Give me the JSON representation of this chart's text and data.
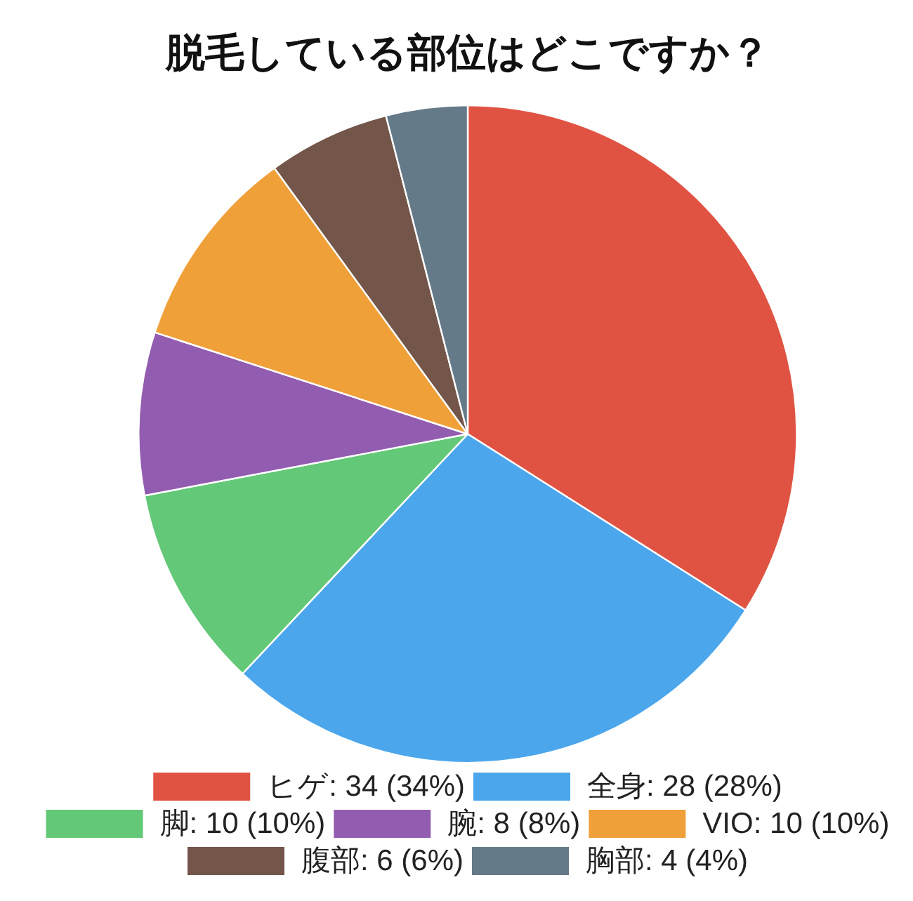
{
  "chart_data": {
    "type": "pie",
    "title": "脱毛している部位はどこですか？",
    "categories": [
      "ヒゲ",
      "全身",
      "脚",
      "腕",
      "VIO",
      "腹部",
      "胸部"
    ],
    "values": [
      34,
      28,
      10,
      8,
      10,
      6,
      4
    ],
    "value_labels": [
      "34 (34%)",
      "28 (28%)",
      "10 (10%)",
      "8 (8%)",
      "10 (10%)",
      "6 (6%)",
      "4 (4%)"
    ],
    "colors": [
      "#e05343",
      "#4ba6ec",
      "#63c877",
      "#925db0",
      "#efa038",
      "#735649",
      "#647a89"
    ],
    "legend": "bottom"
  }
}
